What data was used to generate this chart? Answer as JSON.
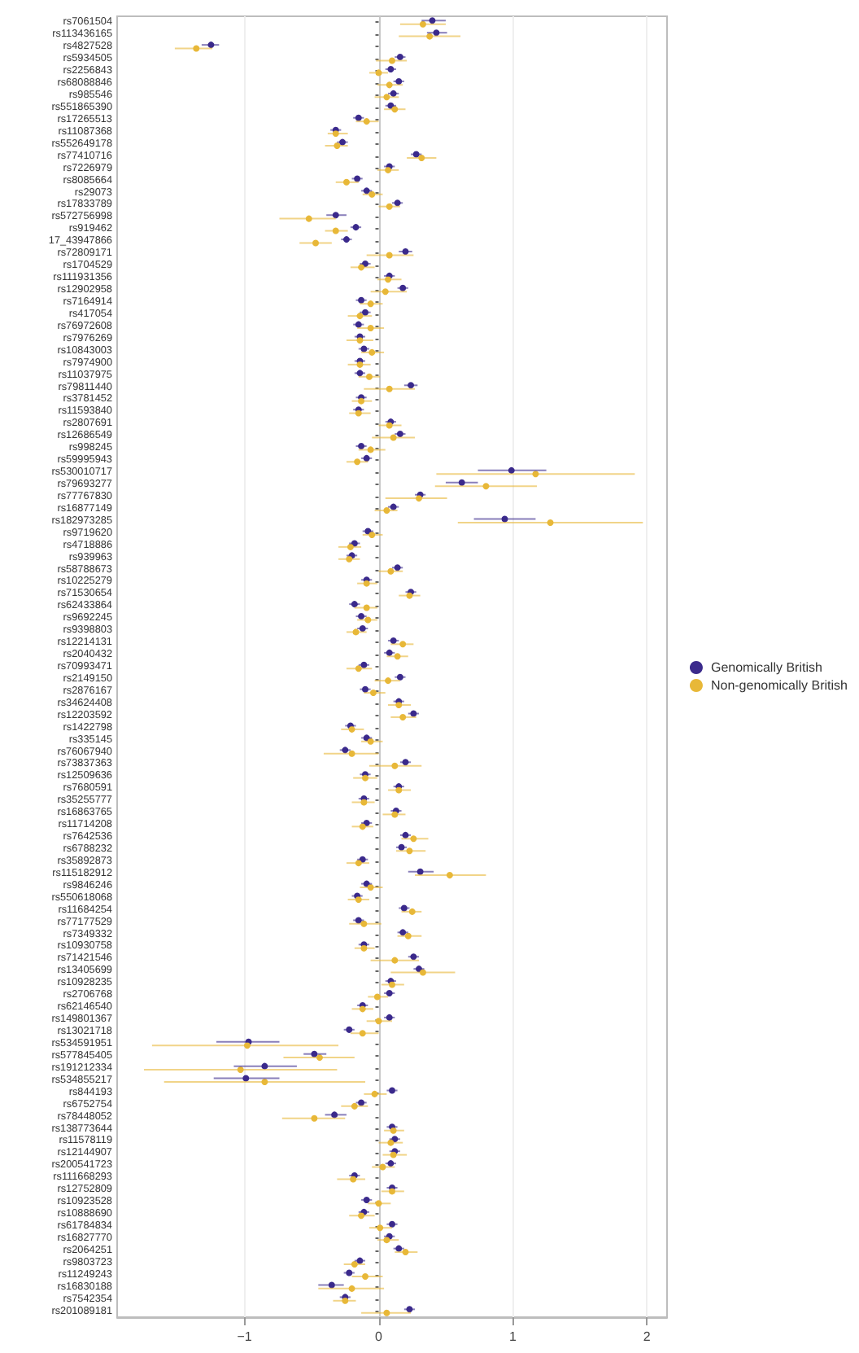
{
  "chart_data": {
    "type": "scatter",
    "orientation": "horizontal",
    "categories": [
      "rs7061504",
      "rs113436165",
      "rs4827528",
      "rs5934505",
      "rs2256843",
      "rs68088846",
      "rs985546",
      "rs551865390",
      "rs17265513",
      "rs11087368",
      "rs552649178",
      "rs77410716",
      "rs7226979",
      "rs8085664",
      "rs29073",
      "rs17833789",
      "rs572756998",
      "rs919462",
      "17_43947866",
      "rs72809171",
      "rs1704529",
      "rs111931356",
      "rs12902958",
      "rs7164914",
      "rs417054",
      "rs76972608",
      "rs7976269",
      "rs10843003",
      "rs7974900",
      "rs11037975",
      "rs79811440",
      "rs3781452",
      "rs11593840",
      "rs2807691",
      "rs12686549",
      "rs998245",
      "rs59995943",
      "rs530010717",
      "rs79693277",
      "rs77767830",
      "rs16877149",
      "rs182973285",
      "rs9719620",
      "rs4718886",
      "rs939963",
      "rs58788673",
      "rs10225279",
      "rs71530654",
      "rs62433864",
      "rs9692245",
      "rs9398803",
      "rs12214131",
      "rs2040432",
      "rs70993471",
      "rs2149150",
      "rs2876167",
      "rs34624408",
      "rs12203592",
      "rs1422798",
      "rs335145",
      "rs76067940",
      "rs73837363",
      "rs12509636",
      "rs7680591",
      "rs35255777",
      "rs16863765",
      "rs11714208",
      "rs7642536",
      "rs6788232",
      "rs35892873",
      "rs115182912",
      "rs9846246",
      "rs550618068",
      "rs11684254",
      "rs77177529",
      "rs7349332",
      "rs10930758",
      "rs71421546",
      "rs13405699",
      "rs10928235",
      "rs2706768",
      "rs62146540",
      "rs149801367",
      "rs13021718",
      "rs534591951",
      "rs577845405",
      "rs191212334",
      "rs534855217",
      "rs844193",
      "rs6752754",
      "rs78448052",
      "rs138773644",
      "rs11578119",
      "rs12144907",
      "rs200541723",
      "rs111668293",
      "rs12752809",
      "rs10923528",
      "rs10888690",
      "rs61784834",
      "rs16827770",
      "rs2064251",
      "rs9803723",
      "rs11249243",
      "rs16830188",
      "rs7542354",
      "rs201089181"
    ],
    "series": [
      {
        "name": "Genomically British",
        "color": "#3b2a8c",
        "values": [
          0.4,
          0.43,
          -1.25,
          0.16,
          0.09,
          0.15,
          0.11,
          0.09,
          -0.15,
          -0.32,
          -0.27,
          0.28,
          0.08,
          -0.16,
          -0.09,
          0.14,
          -0.32,
          -0.17,
          -0.24,
          0.2,
          -0.1,
          0.08,
          0.18,
          -0.13,
          -0.1,
          -0.15,
          -0.14,
          -0.11,
          -0.14,
          -0.14,
          0.24,
          -0.13,
          -0.15,
          0.09,
          0.16,
          -0.13,
          -0.09,
          0.99,
          0.62,
          0.31,
          0.11,
          0.94,
          -0.08,
          -0.18,
          -0.2,
          0.14,
          -0.09,
          0.24,
          -0.18,
          -0.13,
          -0.12,
          0.11,
          0.08,
          -0.11,
          0.16,
          -0.1,
          0.15,
          0.26,
          -0.21,
          -0.09,
          -0.25,
          0.2,
          -0.1,
          0.15,
          -0.11,
          0.13,
          -0.09,
          0.2,
          0.17,
          -0.12,
          0.31,
          -0.09,
          -0.16,
          0.19,
          -0.15,
          0.18,
          -0.11,
          0.26,
          0.3,
          0.09,
          0.08,
          -0.12,
          0.08,
          -0.22,
          -0.97,
          -0.48,
          -0.85,
          -0.99,
          0.1,
          -0.13,
          -0.33,
          0.1,
          0.12,
          0.12,
          0.09,
          -0.18,
          0.1,
          -0.09,
          -0.11,
          0.1,
          0.08,
          0.15,
          -0.14,
          -0.22,
          -0.35,
          -0.25,
          0.23
        ],
        "errors": [
          [
            0.32,
            0.5
          ],
          [
            0.36,
            0.51
          ],
          [
            -1.32,
            -1.19
          ],
          [
            0.12,
            0.2
          ],
          [
            0.05,
            0.13
          ],
          [
            0.11,
            0.19
          ],
          [
            0.07,
            0.15
          ],
          [
            0.05,
            0.13
          ],
          [
            -0.19,
            -0.11
          ],
          [
            -0.36,
            -0.28
          ],
          [
            -0.31,
            -0.23
          ],
          [
            0.24,
            0.32
          ],
          [
            0.04,
            0.12
          ],
          [
            -0.2,
            -0.12
          ],
          [
            -0.13,
            -0.05
          ],
          [
            0.1,
            0.18
          ],
          [
            -0.39,
            -0.24
          ],
          [
            -0.21,
            -0.13
          ],
          [
            -0.28,
            -0.2
          ],
          [
            0.15,
            0.25
          ],
          [
            -0.14,
            -0.06
          ],
          [
            0.04,
            0.12
          ],
          [
            0.14,
            0.22
          ],
          [
            -0.17,
            -0.09
          ],
          [
            -0.14,
            -0.06
          ],
          [
            -0.19,
            -0.11
          ],
          [
            -0.18,
            -0.1
          ],
          [
            -0.15,
            -0.07
          ],
          [
            -0.18,
            -0.1
          ],
          [
            -0.18,
            -0.1
          ],
          [
            0.19,
            0.29
          ],
          [
            -0.17,
            -0.09
          ],
          [
            -0.19,
            -0.11
          ],
          [
            0.05,
            0.13
          ],
          [
            0.12,
            0.2
          ],
          [
            -0.17,
            -0.09
          ],
          [
            -0.13,
            -0.05
          ],
          [
            0.74,
            1.25
          ],
          [
            0.5,
            0.74
          ],
          [
            0.27,
            0.35
          ],
          [
            0.07,
            0.15
          ],
          [
            0.71,
            1.17
          ],
          [
            -0.12,
            -0.04
          ],
          [
            -0.22,
            -0.14
          ],
          [
            -0.24,
            -0.16
          ],
          [
            0.1,
            0.18
          ],
          [
            -0.13,
            -0.05
          ],
          [
            0.2,
            0.28
          ],
          [
            -0.22,
            -0.14
          ],
          [
            -0.17,
            -0.09
          ],
          [
            -0.16,
            -0.08
          ],
          [
            0.07,
            0.15
          ],
          [
            0.04,
            0.12
          ],
          [
            -0.15,
            -0.07
          ],
          [
            0.12,
            0.2
          ],
          [
            -0.14,
            -0.06
          ],
          [
            0.11,
            0.19
          ],
          [
            0.22,
            0.3
          ],
          [
            -0.25,
            -0.17
          ],
          [
            -0.13,
            -0.05
          ],
          [
            -0.29,
            -0.21
          ],
          [
            0.16,
            0.24
          ],
          [
            -0.14,
            -0.06
          ],
          [
            0.11,
            0.19
          ],
          [
            -0.15,
            -0.07
          ],
          [
            0.09,
            0.17
          ],
          [
            -0.13,
            -0.05
          ],
          [
            0.16,
            0.24
          ],
          [
            0.13,
            0.21
          ],
          [
            -0.16,
            -0.08
          ],
          [
            0.22,
            0.41
          ],
          [
            -0.13,
            -0.05
          ],
          [
            -0.2,
            -0.12
          ],
          [
            0.15,
            0.23
          ],
          [
            -0.19,
            -0.11
          ],
          [
            0.14,
            0.22
          ],
          [
            -0.15,
            -0.07
          ],
          [
            0.22,
            0.3
          ],
          [
            0.26,
            0.34
          ],
          [
            0.05,
            0.13
          ],
          [
            0.04,
            0.12
          ],
          [
            -0.16,
            -0.08
          ],
          [
            0.04,
            0.12
          ],
          [
            -0.26,
            -0.18
          ],
          [
            -1.21,
            -0.74
          ],
          [
            -0.56,
            -0.39
          ],
          [
            -1.08,
            -0.61
          ],
          [
            -1.23,
            -0.74
          ],
          [
            0.06,
            0.14
          ],
          [
            -0.17,
            -0.09
          ],
          [
            -0.4,
            -0.24
          ],
          [
            0.06,
            0.14
          ],
          [
            0.08,
            0.16
          ],
          [
            0.08,
            0.16
          ],
          [
            0.05,
            0.13
          ],
          [
            -0.22,
            -0.14
          ],
          [
            0.06,
            0.14
          ],
          [
            -0.13,
            -0.05
          ],
          [
            -0.15,
            -0.07
          ],
          [
            0.06,
            0.14
          ],
          [
            0.04,
            0.12
          ],
          [
            0.11,
            0.19
          ],
          [
            -0.18,
            -0.1
          ],
          [
            -0.26,
            -0.18
          ],
          [
            -0.45,
            -0.26
          ],
          [
            -0.29,
            -0.21
          ],
          [
            0.19,
            0.27
          ]
        ]
      },
      {
        "name": "Non-genomically British",
        "color": "#e8b838",
        "values": [
          0.33,
          0.38,
          -1.36,
          0.1,
          0.0,
          0.08,
          0.06,
          0.12,
          -0.09,
          -0.32,
          -0.31,
          0.32,
          0.07,
          -0.24,
          -0.05,
          0.08,
          -0.52,
          -0.32,
          -0.47,
          0.08,
          -0.13,
          0.07,
          0.05,
          -0.06,
          -0.14,
          -0.06,
          -0.14,
          -0.05,
          -0.14,
          -0.07,
          0.08,
          -0.13,
          -0.15,
          0.08,
          0.11,
          -0.06,
          -0.16,
          1.17,
          0.8,
          0.3,
          0.06,
          1.28,
          -0.05,
          -0.21,
          -0.22,
          0.09,
          -0.09,
          0.23,
          -0.09,
          -0.08,
          -0.17,
          0.18,
          0.14,
          -0.15,
          0.07,
          -0.04,
          0.15,
          0.18,
          -0.2,
          -0.06,
          -0.2,
          0.12,
          -0.1,
          0.15,
          -0.11,
          0.12,
          -0.12,
          0.26,
          0.23,
          -0.15,
          0.53,
          -0.06,
          -0.15,
          0.25,
          -0.11,
          0.22,
          -0.11,
          0.12,
          0.33,
          0.1,
          -0.01,
          -0.12,
          0.0,
          -0.12,
          -0.98,
          -0.44,
          -1.03,
          -0.85,
          -0.03,
          -0.18,
          -0.48,
          0.11,
          0.09,
          0.11,
          0.03,
          -0.19,
          0.1,
          0.0,
          -0.13,
          0.01,
          0.06,
          0.2,
          -0.18,
          -0.1,
          -0.2,
          -0.25,
          0.06
        ],
        "errors": [
          [
            0.16,
            0.5
          ],
          [
            0.15,
            0.61
          ],
          [
            -1.52,
            -1.24
          ],
          [
            -0.02,
            0.21
          ],
          [
            -0.07,
            0.07
          ],
          [
            -0.01,
            0.18
          ],
          [
            -0.03,
            0.15
          ],
          [
            0.04,
            0.2
          ],
          [
            -0.17,
            0.0
          ],
          [
            -0.38,
            -0.23
          ],
          [
            -0.4,
            -0.23
          ],
          [
            0.21,
            0.43
          ],
          [
            -0.01,
            0.15
          ],
          [
            -0.32,
            -0.15
          ],
          [
            -0.12,
            0.03
          ],
          [
            0.0,
            0.16
          ],
          [
            -0.74,
            -0.32
          ],
          [
            -0.4,
            -0.23
          ],
          [
            -0.59,
            -0.35
          ],
          [
            -0.09,
            0.26
          ],
          [
            -0.21,
            -0.03
          ],
          [
            -0.01,
            0.17
          ],
          [
            -0.06,
            0.21
          ],
          [
            -0.14,
            0.03
          ],
          [
            -0.23,
            -0.05
          ],
          [
            -0.16,
            0.04
          ],
          [
            -0.24,
            -0.04
          ],
          [
            -0.13,
            0.04
          ],
          [
            -0.23,
            -0.06
          ],
          [
            -0.15,
            0.01
          ],
          [
            -0.11,
            0.27
          ],
          [
            -0.2,
            -0.05
          ],
          [
            -0.22,
            -0.06
          ],
          [
            0.0,
            0.17
          ],
          [
            -0.05,
            0.27
          ],
          [
            -0.15,
            0.05
          ],
          [
            -0.24,
            -0.08
          ],
          [
            0.43,
            1.91
          ],
          [
            0.42,
            1.18
          ],
          [
            0.05,
            0.51
          ],
          [
            -0.03,
            0.14
          ],
          [
            0.59,
            1.97
          ],
          [
            -0.12,
            0.03
          ],
          [
            -0.3,
            -0.13
          ],
          [
            -0.3,
            -0.14
          ],
          [
            0.0,
            0.18
          ],
          [
            -0.16,
            -0.01
          ],
          [
            0.15,
            0.31
          ],
          [
            -0.18,
            -0.01
          ],
          [
            -0.16,
            -0.01
          ],
          [
            -0.24,
            -0.09
          ],
          [
            0.09,
            0.26
          ],
          [
            0.06,
            0.22
          ],
          [
            -0.24,
            -0.05
          ],
          [
            -0.03,
            0.16
          ],
          [
            -0.11,
            0.05
          ],
          [
            0.07,
            0.24
          ],
          [
            0.09,
            0.28
          ],
          [
            -0.28,
            -0.11
          ],
          [
            -0.13,
            0.03
          ],
          [
            -0.41,
            0.0
          ],
          [
            -0.07,
            0.32
          ],
          [
            -0.19,
            -0.01
          ],
          [
            0.07,
            0.24
          ],
          [
            -0.2,
            -0.03
          ],
          [
            0.03,
            0.2
          ],
          [
            -0.2,
            -0.04
          ],
          [
            0.17,
            0.37
          ],
          [
            0.13,
            0.35
          ],
          [
            -0.24,
            -0.07
          ],
          [
            0.27,
            0.8
          ],
          [
            -0.14,
            0.03
          ],
          [
            -0.23,
            -0.07
          ],
          [
            0.17,
            0.32
          ],
          [
            -0.22,
            0.02
          ],
          [
            0.14,
            0.32
          ],
          [
            -0.18,
            -0.03
          ],
          [
            -0.06,
            0.3
          ],
          [
            0.09,
            0.57
          ],
          [
            0.02,
            0.19
          ],
          [
            -0.08,
            0.07
          ],
          [
            -0.2,
            -0.04
          ],
          [
            -0.09,
            0.1
          ],
          [
            -0.21,
            0.0
          ],
          [
            -1.69,
            -0.3
          ],
          [
            -0.71,
            -0.18
          ],
          [
            -1.75,
            -0.31
          ],
          [
            -1.6,
            -0.1
          ],
          [
            -0.11,
            0.06
          ],
          [
            -0.28,
            -0.08
          ],
          [
            -0.72,
            -0.25
          ],
          [
            0.04,
            0.19
          ],
          [
            0.0,
            0.18
          ],
          [
            0.03,
            0.21
          ],
          [
            -0.05,
            0.12
          ],
          [
            -0.31,
            -0.1
          ],
          [
            0.02,
            0.19
          ],
          [
            -0.08,
            0.09
          ],
          [
            -0.22,
            -0.03
          ],
          [
            -0.07,
            0.1
          ],
          [
            -0.01,
            0.15
          ],
          [
            0.12,
            0.29
          ],
          [
            -0.26,
            -0.1
          ],
          [
            -0.2,
            0.03
          ],
          [
            -0.45,
            0.04
          ],
          [
            -0.34,
            -0.17
          ],
          [
            -0.13,
            0.24
          ]
        ]
      }
    ],
    "xlim": [
      -1.95,
      2.15
    ],
    "xticks": [
      -1,
      0,
      1,
      2
    ],
    "grid": "x",
    "legend": "right",
    "marker": "circle",
    "ref_lines": [
      {
        "axis": "x",
        "value": 0,
        "color": "#c8c8c8"
      }
    ]
  }
}
